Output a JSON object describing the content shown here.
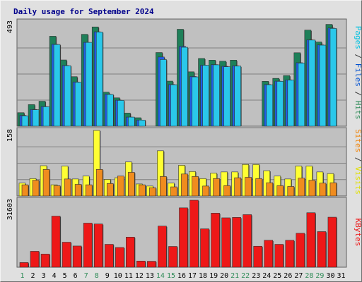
{
  "chart_data": {
    "type": "bar",
    "title": "Daily usage for September 2024",
    "categories": [
      "1",
      "2",
      "3",
      "4",
      "5",
      "6",
      "7",
      "8",
      "9",
      "10",
      "11",
      "12",
      "13",
      "14",
      "15",
      "16",
      "17",
      "18",
      "19",
      "20",
      "21",
      "22",
      "23",
      "24",
      "25",
      "26",
      "27",
      "28",
      "29",
      "30",
      "31"
    ],
    "weekend_days": [
      "1",
      "7",
      "8",
      "14",
      "15",
      "21",
      "22",
      "28",
      "29"
    ],
    "panels": [
      {
        "id": "hits-files-pages",
        "ymax_label": "493",
        "ymax": 493,
        "ylabel_parts": [
          {
            "text": "Pages",
            "color": "#00c0e0"
          },
          {
            "text": " / ",
            "color": "#333333"
          },
          {
            "text": "Files",
            "color": "#0050d0"
          },
          {
            "text": " / ",
            "color": "#333333"
          },
          {
            "text": "Hits",
            "color": "#2e8b57"
          }
        ],
        "series": [
          {
            "name": "Hits",
            "color": "#1e8059",
            "values": [
              64,
              102,
              118,
              425,
              313,
              234,
              434,
              469,
              161,
              134,
              62,
              40,
              0,
              348,
              213,
              458,
              257,
              320,
              312,
              307,
              312,
              0,
              0,
              212,
              226,
              239,
              347,
              454,
              398,
              481,
              0
            ]
          },
          {
            "name": "Files",
            "color": "#1f5fe8",
            "values": [
              51,
              79,
              93,
              387,
              287,
              209,
              396,
              446,
              151,
              123,
              43,
              29,
              0,
              327,
              197,
              377,
              235,
              288,
              291,
              283,
              285,
              0,
              0,
              197,
              213,
              219,
              300,
              408,
              384,
              464,
              0
            ]
          },
          {
            "name": "Pages",
            "color": "#2ac8ea",
            "values": [
              49,
              78,
              92,
              386,
              286,
              208,
              396,
              445,
              150,
              122,
              43,
              29,
              0,
              315,
              196,
              373,
              233,
              288,
              290,
              281,
              284,
              0,
              0,
              196,
              212,
              218,
              298,
              407,
              383,
              462,
              0
            ]
          }
        ]
      },
      {
        "id": "visits-sites",
        "ymax_label": "158",
        "ymax": 158,
        "ylabel_parts": [
          {
            "text": "Sites",
            "color": "#f08000"
          },
          {
            "text": " / ",
            "color": "#333333"
          },
          {
            "text": "Visits",
            "color": "#e0e000"
          }
        ],
        "series": [
          {
            "name": "Visits",
            "color": "#ffff33",
            "values": [
              31,
              42,
              73,
              27,
              72,
              41,
              48,
              158,
              40,
              44,
              82,
              29,
              24,
              109,
              31,
              74,
              59,
              42,
              55,
              58,
              58,
              76,
              76,
              61,
              48,
              41,
              72,
              72,
              58,
              54,
              0
            ]
          },
          {
            "name": "Sites",
            "color": "#f08c1e",
            "values": [
              27,
              38,
              64,
              25,
              41,
              28,
              27,
              64,
              30,
              48,
              57,
              27,
              20,
              47,
              22,
              53,
              47,
              24,
              42,
              25,
              44,
              45,
              42,
              32,
              25,
              23,
              43,
              38,
              31,
              32,
              0
            ]
          }
        ]
      },
      {
        "id": "kbytes",
        "ymax_label": "31603",
        "ymax": 31603,
        "ylabel_parts": [
          {
            "text": "KBytes",
            "color": "#ee1111"
          }
        ],
        "series": [
          {
            "name": "KBytes",
            "color": "#ee1818",
            "values": [
              2200,
              7500,
              6200,
              24100,
              11800,
              10000,
              20800,
              20400,
              10800,
              9300,
              14200,
              2900,
              2800,
              19400,
              9800,
              28000,
              31603,
              18100,
              25500,
              23300,
              23500,
              24800,
              9900,
              12700,
              10800,
              12700,
              16000,
              25700,
              16800,
              23600,
              0
            ]
          }
        ]
      }
    ]
  }
}
